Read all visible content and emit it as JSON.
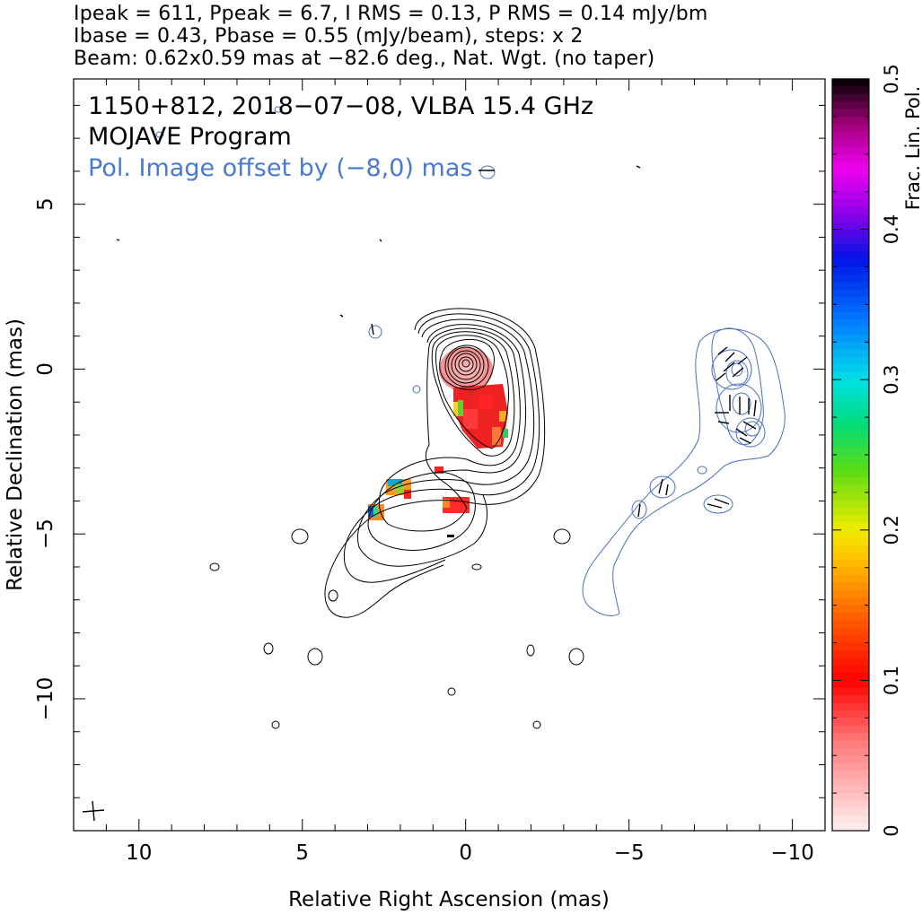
{
  "header": {
    "line1": "Ipeak = 611, Ppeak = 6.7, I RMS = 0.13, P RMS = 0.14 mJy/bm",
    "line2": "Ibase = 0.43, Pbase = 0.55 (mJy/beam), steps: x 2",
    "line3": "Beam: 0.62x0.59 mas at −82.6 deg., Nat. Wgt. (no taper)"
  },
  "chart_data": {
    "type": "heatmap",
    "title": "1150+812, 2018−07−08, VLBA 15.4 GHz",
    "subtitle": "MOJAVE Program",
    "annotation": "Pol. Image offset by (−8,0) mas",
    "xlabel": "Relative Right Ascension (mas)",
    "ylabel": "Relative Declination (mas)",
    "xlim": [
      12,
      -11
    ],
    "ylim": [
      -14,
      8.8
    ],
    "x_ticks": [
      10,
      5,
      0,
      -5,
      -10
    ],
    "x_tick_labels": [
      "10",
      "5",
      "0",
      "−5",
      "−10"
    ],
    "y_ticks": [
      5,
      0,
      -5,
      -10
    ],
    "y_tick_labels": [
      "5",
      "0",
      "−5",
      "−10"
    ],
    "colorbar": {
      "label": "Frac. Lin. Pol.",
      "range": [
        0,
        0.5
      ],
      "ticks": [
        0,
        0.1,
        0.2,
        0.3,
        0.4,
        0.5
      ],
      "tick_labels": [
        "0",
        "0.1",
        "0.2",
        "0.3",
        "0.4",
        "0.5"
      ]
    },
    "intensity_contours": {
      "peak_mJy_per_beam": 611,
      "base_mJy_per_beam": 0.43,
      "step_factor": 2,
      "core": [
        0,
        0
      ],
      "ridge": [
        [
          0,
          0
        ],
        [
          -0.4,
          -1.4
        ],
        [
          -0.6,
          -2.3
        ],
        [
          -0.1,
          -3.2
        ],
        [
          1.2,
          -3.9
        ],
        [
          2.4,
          -4.5
        ],
        [
          3.6,
          -5.4
        ],
        [
          4.6,
          -6.7
        ]
      ]
    },
    "frac_pol_regions": [
      {
        "ra": 0.1,
        "dec": -0.4,
        "frac_pol": 0.03
      },
      {
        "ra": -0.4,
        "dec": -1.3,
        "frac_pol": 0.07
      },
      {
        "ra": -0.7,
        "dec": -2.1,
        "frac_pol": 0.12
      },
      {
        "ra": 0.1,
        "dec": -4.3,
        "frac_pol": 0.13
      },
      {
        "ra": 2.0,
        "dec": -3.8,
        "frac_pol": 0.22
      },
      {
        "ra": 2.7,
        "dec": -4.5,
        "frac_pol": 0.27
      },
      {
        "ra": 0.8,
        "dec": -3.2,
        "frac_pol": 0.12
      }
    ],
    "pol_image_offset_mas": [
      -8,
      0
    ]
  },
  "colors": {
    "intensity_contour": "#000000",
    "pol_contour": "#4a6fc0",
    "annotation_blue": "#4a7ad0"
  }
}
